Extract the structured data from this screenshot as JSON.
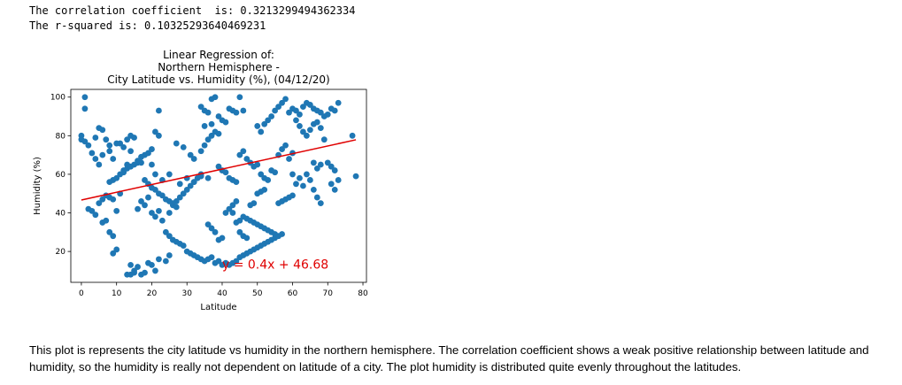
{
  "output": {
    "line1": "The correlation coefficient  is: 0.3213299494362334",
    "line2": "The r-squared is: 0.10325293640469231"
  },
  "chart_data": {
    "type": "scatter",
    "title_lines": [
      "Linear Regression of:",
      "Northern Hemisphere -",
      "City Latitude vs. Humidity (%), (04/12/20)"
    ],
    "xlabel": "Latitude",
    "ylabel": "Humidity (%)",
    "xlim": [
      -3,
      81
    ],
    "ylim": [
      4,
      104
    ],
    "xticks": [
      0,
      10,
      20,
      30,
      40,
      50,
      60,
      70,
      80
    ],
    "yticks": [
      20,
      40,
      60,
      80,
      100
    ],
    "grid": false,
    "regression": {
      "slope": 0.4,
      "intercept": 46.68,
      "x_range": [
        0,
        78
      ],
      "color": "#e00000",
      "equation_label": "y = 0.4x + 46.68",
      "label_at": [
        40,
        11
      ]
    },
    "point_color": "#1f77b4",
    "points": [
      [
        1,
        100
      ],
      [
        1,
        94
      ],
      [
        0,
        80
      ],
      [
        0,
        78
      ],
      [
        1,
        77
      ],
      [
        2,
        75
      ],
      [
        3,
        71
      ],
      [
        4,
        68
      ],
      [
        5,
        65
      ],
      [
        6,
        70
      ],
      [
        4,
        79
      ],
      [
        5,
        84
      ],
      [
        6,
        83
      ],
      [
        7,
        78
      ],
      [
        8,
        75
      ],
      [
        8,
        72
      ],
      [
        9,
        68
      ],
      [
        10,
        76
      ],
      [
        11,
        76
      ],
      [
        12,
        74
      ],
      [
        13,
        78
      ],
      [
        14,
        80
      ],
      [
        15,
        79
      ],
      [
        14,
        72
      ],
      [
        13,
        65
      ],
      [
        12,
        62
      ],
      [
        16,
        66
      ],
      [
        17,
        66
      ],
      [
        18,
        70
      ],
      [
        19,
        71
      ],
      [
        20,
        73
      ],
      [
        21,
        82
      ],
      [
        22,
        80
      ],
      [
        20,
        65
      ],
      [
        21,
        60
      ],
      [
        23,
        57
      ],
      [
        25,
        60
      ],
      [
        28,
        55
      ],
      [
        30,
        58
      ],
      [
        32,
        56
      ],
      [
        34,
        60
      ],
      [
        36,
        58
      ],
      [
        22,
        93
      ],
      [
        27,
        76
      ],
      [
        29,
        74
      ],
      [
        31,
        70
      ],
      [
        32,
        68
      ],
      [
        34,
        72
      ],
      [
        35,
        75
      ],
      [
        36,
        78
      ],
      [
        37,
        80
      ],
      [
        38,
        82
      ],
      [
        39,
        81
      ],
      [
        34,
        95
      ],
      [
        35,
        93
      ],
      [
        36,
        92
      ],
      [
        37,
        99
      ],
      [
        38,
        100
      ],
      [
        39,
        90
      ],
      [
        40,
        88
      ],
      [
        41,
        87
      ],
      [
        42,
        94
      ],
      [
        43,
        93
      ],
      [
        44,
        92
      ],
      [
        45,
        100
      ],
      [
        46,
        93
      ],
      [
        35,
        85
      ],
      [
        37,
        86
      ],
      [
        39,
        64
      ],
      [
        40,
        62
      ],
      [
        41,
        61
      ],
      [
        42,
        58
      ],
      [
        43,
        57
      ],
      [
        44,
        56
      ],
      [
        45,
        70
      ],
      [
        46,
        72
      ],
      [
        47,
        68
      ],
      [
        48,
        66
      ],
      [
        49,
        64
      ],
      [
        50,
        65
      ],
      [
        51,
        60
      ],
      [
        52,
        58
      ],
      [
        53,
        57
      ],
      [
        54,
        62
      ],
      [
        55,
        61
      ],
      [
        56,
        70
      ],
      [
        57,
        73
      ],
      [
        58,
        75
      ],
      [
        59,
        68
      ],
      [
        60,
        71
      ],
      [
        50,
        85
      ],
      [
        51,
        82
      ],
      [
        52,
        86
      ],
      [
        53,
        88
      ],
      [
        54,
        90
      ],
      [
        55,
        93
      ],
      [
        56,
        95
      ],
      [
        57,
        97
      ],
      [
        58,
        99
      ],
      [
        59,
        92
      ],
      [
        60,
        94
      ],
      [
        61,
        93
      ],
      [
        62,
        91
      ],
      [
        63,
        95
      ],
      [
        64,
        97
      ],
      [
        65,
        96
      ],
      [
        66,
        94
      ],
      [
        67,
        93
      ],
      [
        68,
        92
      ],
      [
        69,
        90
      ],
      [
        70,
        91
      ],
      [
        71,
        94
      ],
      [
        72,
        93
      ],
      [
        73,
        97
      ],
      [
        61,
        88
      ],
      [
        62,
        85
      ],
      [
        63,
        82
      ],
      [
        64,
        80
      ],
      [
        65,
        83
      ],
      [
        66,
        86
      ],
      [
        67,
        87
      ],
      [
        68,
        84
      ],
      [
        69,
        78
      ],
      [
        70,
        66
      ],
      [
        71,
        64
      ],
      [
        72,
        62
      ],
      [
        60,
        60
      ],
      [
        61,
        55
      ],
      [
        62,
        58
      ],
      [
        63,
        54
      ],
      [
        64,
        60
      ],
      [
        65,
        57
      ],
      [
        66,
        52
      ],
      [
        67,
        48
      ],
      [
        68,
        45
      ],
      [
        66,
        66
      ],
      [
        67,
        63
      ],
      [
        68,
        65
      ],
      [
        71,
        55
      ],
      [
        72,
        52
      ],
      [
        73,
        57
      ],
      [
        77,
        80
      ],
      [
        78,
        59
      ],
      [
        2,
        42
      ],
      [
        3,
        41
      ],
      [
        4,
        39
      ],
      [
        5,
        45
      ],
      [
        6,
        47
      ],
      [
        7,
        49
      ],
      [
        8,
        48
      ],
      [
        9,
        47
      ],
      [
        10,
        41
      ],
      [
        11,
        50
      ],
      [
        6,
        35
      ],
      [
        7,
        36
      ],
      [
        8,
        30
      ],
      [
        9,
        28
      ],
      [
        10,
        21
      ],
      [
        9,
        19
      ],
      [
        14,
        13
      ],
      [
        15,
        10
      ],
      [
        16,
        12
      ],
      [
        17,
        8
      ],
      [
        18,
        9
      ],
      [
        19,
        14
      ],
      [
        20,
        13
      ],
      [
        21,
        10
      ],
      [
        22,
        16
      ],
      [
        24,
        15
      ],
      [
        25,
        18
      ],
      [
        13,
        8
      ],
      [
        14,
        8
      ],
      [
        15,
        9
      ],
      [
        16,
        42
      ],
      [
        17,
        46
      ],
      [
        18,
        44
      ],
      [
        19,
        48
      ],
      [
        20,
        40
      ],
      [
        21,
        38
      ],
      [
        22,
        41
      ],
      [
        23,
        36
      ],
      [
        24,
        30
      ],
      [
        25,
        28
      ],
      [
        26,
        26
      ],
      [
        27,
        25
      ],
      [
        28,
        24
      ],
      [
        29,
        23
      ],
      [
        30,
        20
      ],
      [
        31,
        19
      ],
      [
        32,
        18
      ],
      [
        33,
        17
      ],
      [
        34,
        16
      ],
      [
        35,
        15
      ],
      [
        36,
        16
      ],
      [
        37,
        17
      ],
      [
        38,
        14
      ],
      [
        39,
        15
      ],
      [
        40,
        13
      ],
      [
        41,
        14
      ],
      [
        42,
        13
      ],
      [
        43,
        14
      ],
      [
        44,
        15
      ],
      [
        45,
        17
      ],
      [
        46,
        18
      ],
      [
        47,
        19
      ],
      [
        48,
        20
      ],
      [
        49,
        21
      ],
      [
        50,
        22
      ],
      [
        51,
        23
      ],
      [
        52,
        24
      ],
      [
        53,
        25
      ],
      [
        54,
        26
      ],
      [
        55,
        27
      ],
      [
        56,
        28
      ],
      [
        57,
        29
      ],
      [
        36,
        34
      ],
      [
        37,
        32
      ],
      [
        38,
        30
      ],
      [
        39,
        26
      ],
      [
        40,
        27
      ],
      [
        41,
        40
      ],
      [
        42,
        42
      ],
      [
        43,
        44
      ],
      [
        44,
        46
      ],
      [
        45,
        36
      ],
      [
        46,
        38
      ],
      [
        47,
        37
      ],
      [
        48,
        36
      ],
      [
        49,
        35
      ],
      [
        50,
        34
      ],
      [
        51,
        33
      ],
      [
        52,
        32
      ],
      [
        53,
        31
      ],
      [
        54,
        30
      ],
      [
        55,
        29
      ],
      [
        56,
        45
      ],
      [
        57,
        46
      ],
      [
        58,
        47
      ],
      [
        59,
        48
      ],
      [
        60,
        49
      ],
      [
        48,
        44
      ],
      [
        49,
        45
      ],
      [
        50,
        50
      ],
      [
        51,
        51
      ],
      [
        52,
        52
      ],
      [
        43,
        40
      ],
      [
        44,
        35
      ],
      [
        45,
        30
      ],
      [
        46,
        28
      ],
      [
        47,
        27
      ],
      [
        25,
        40
      ],
      [
        26,
        44
      ],
      [
        27,
        46
      ],
      [
        28,
        48
      ],
      [
        29,
        50
      ],
      [
        30,
        52
      ],
      [
        31,
        54
      ],
      [
        32,
        56
      ],
      [
        33,
        58
      ],
      [
        34,
        59
      ],
      [
        8,
        56
      ],
      [
        9,
        57
      ],
      [
        10,
        58
      ],
      [
        11,
        60
      ],
      [
        12,
        61
      ],
      [
        13,
        63
      ],
      [
        14,
        64
      ],
      [
        15,
        65
      ],
      [
        16,
        67
      ],
      [
        17,
        69
      ],
      [
        18,
        57
      ],
      [
        19,
        55
      ],
      [
        20,
        53
      ],
      [
        21,
        52
      ],
      [
        22,
        50
      ],
      [
        23,
        49
      ],
      [
        24,
        47
      ],
      [
        25,
        46
      ],
      [
        26,
        45
      ],
      [
        27,
        43
      ]
    ]
  },
  "markdown": {
    "text": "This plot is represents the city latitude vs humidity in the northern hemisphere. The correlation coefficient shows a weak positive relationship between latitude and humidity, so the humidity is really not dependent on latitude of a city. The plot humidity is distributed quite evenly throughout the latitudes."
  }
}
